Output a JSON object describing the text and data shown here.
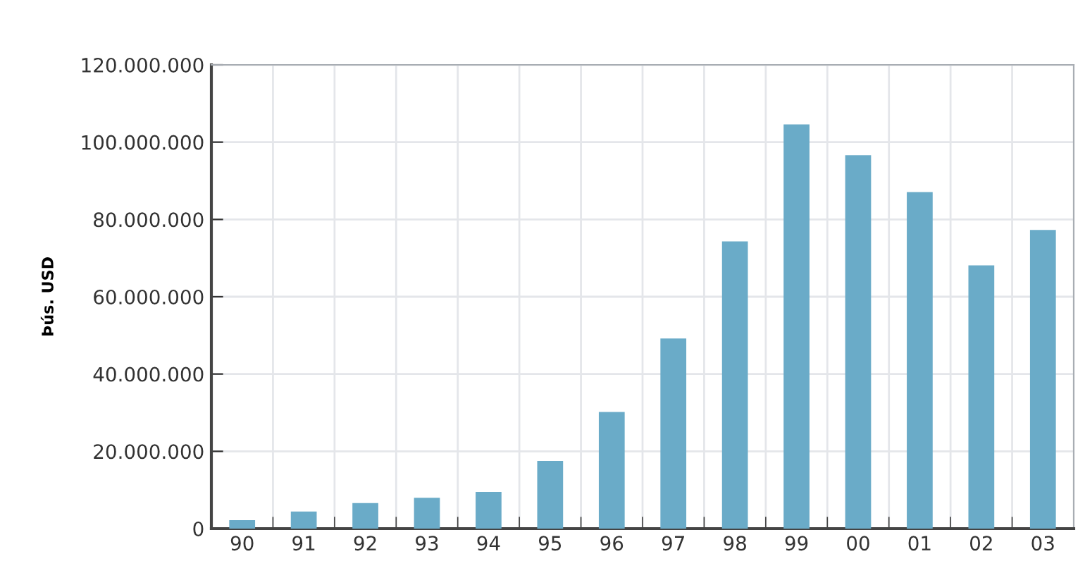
{
  "chart_data": {
    "type": "bar",
    "ylabel": "Þús. USD",
    "categories": [
      "90",
      "91",
      "92",
      "93",
      "94",
      "95",
      "96",
      "97",
      "98",
      "99",
      "00",
      "01",
      "02",
      "03"
    ],
    "values": [
      2200000,
      4400000,
      6600000,
      8000000,
      9500000,
      17500000,
      30200000,
      49200000,
      74300000,
      104600000,
      96600000,
      87100000,
      68100000,
      77300000
    ],
    "color": "#6aabc8",
    "ylim": [
      0,
      120000000
    ],
    "yticks": [
      {
        "value": 0,
        "label": "0"
      },
      {
        "value": 20000000,
        "label": "20.000.000"
      },
      {
        "value": 40000000,
        "label": "40.000.000"
      },
      {
        "value": 60000000,
        "label": "60.000.000"
      },
      {
        "value": 80000000,
        "label": "80.000.000"
      },
      {
        "value": 100000000,
        "label": "100.000.000"
      },
      {
        "value": 120000000,
        "label": "120.000.000"
      }
    ],
    "grid": true
  }
}
